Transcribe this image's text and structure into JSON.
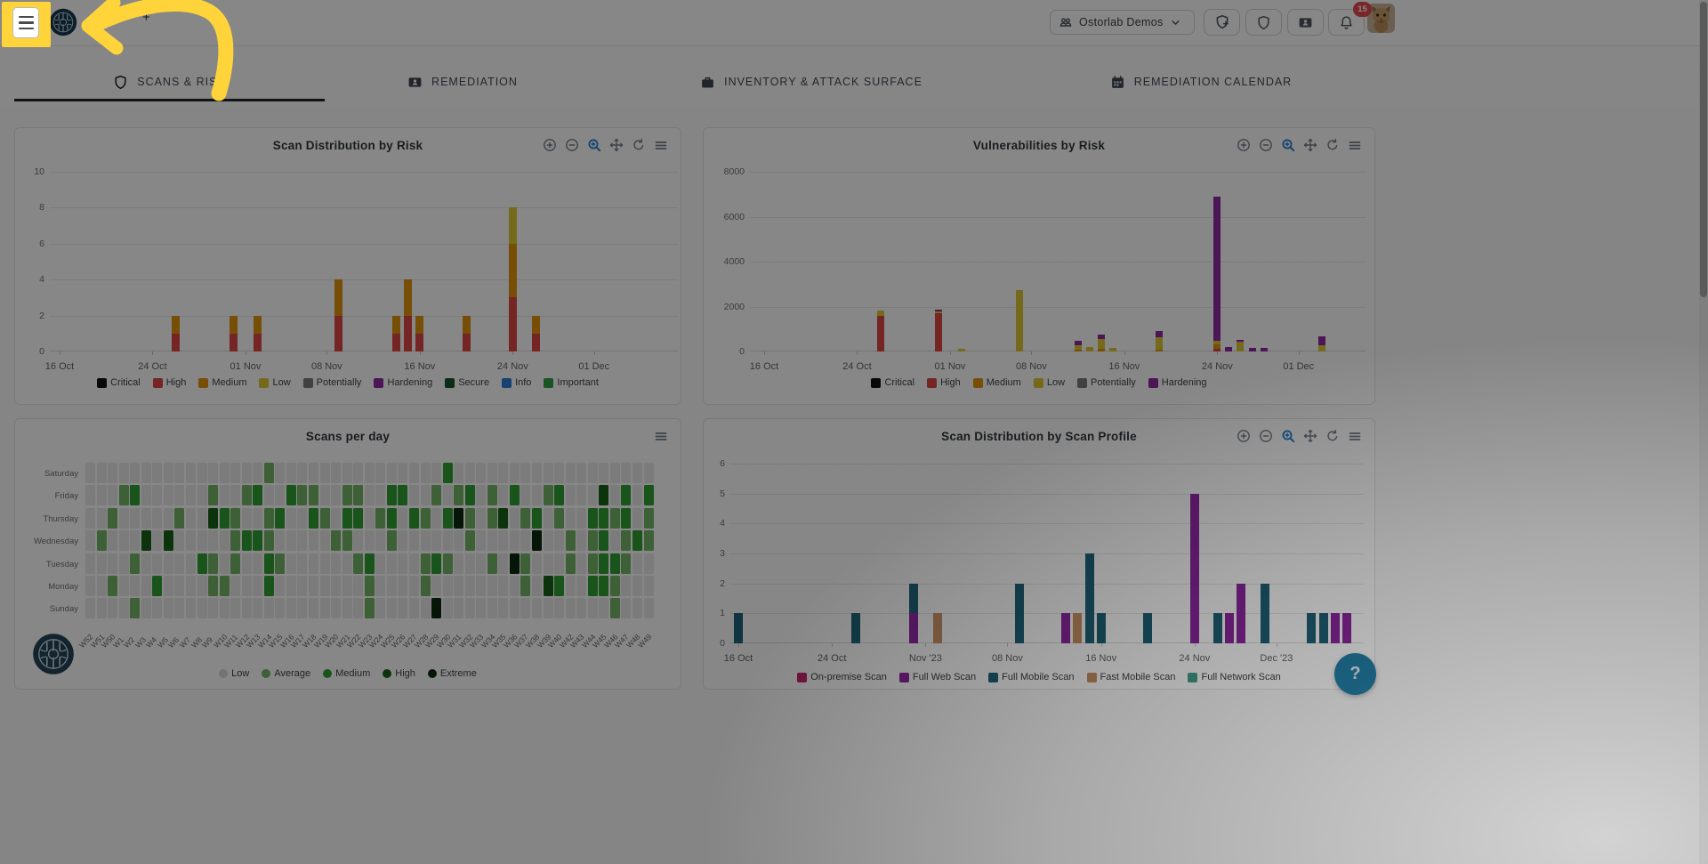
{
  "annotation": {
    "highlight_color": "#FFD43B"
  },
  "header": {
    "menu_button": {
      "icon": "hamburger-icon"
    },
    "logo": "ostorlab-logo",
    "org_switcher": {
      "icon": "organization-icon",
      "label": "Ostorlab Demos",
      "chevron": "chevron-down-icon"
    },
    "actions": [
      {
        "name": "new-scan-button",
        "icon": "shield-plus-icon"
      },
      {
        "name": "scans-button",
        "icon": "shield-icon"
      },
      {
        "name": "contacts-button",
        "icon": "id-card-icon"
      },
      {
        "name": "notifications-button",
        "icon": "bell-icon",
        "badge": "15"
      }
    ],
    "avatar": {
      "icon": "cat-avatar"
    }
  },
  "tabs": [
    {
      "label": "SCANS & RISK",
      "icon": "shield",
      "active": true
    },
    {
      "label": "REMEDIATION",
      "icon": "idcard",
      "active": false
    },
    {
      "label": "INVENTORY & ATTACK SURFACE",
      "icon": "briefcase",
      "active": false
    },
    {
      "label": "REMEDIATION CALENDAR",
      "icon": "calendar",
      "active": false
    }
  ],
  "palette": {
    "Critical": "#111111",
    "High": "#df4545",
    "Medium": "#e0940b",
    "Low": "#ddc735",
    "Potentially": "#7a7a7a",
    "Hardening": "#8f27a3",
    "Secure": "#14532d",
    "Info": "#2d7dd2",
    "Important": "#2e9e44",
    "On-premise Scan": "#c2266d",
    "Full Web Scan": "#8f27a3",
    "Full Mobile Scan": "#1f6379",
    "Fast Mobile Scan": "#c99266",
    "Full Network Scan": "#45a08c"
  },
  "heat_palette": [
    "#e9e9e9",
    "#74b566",
    "#2f9e33",
    "#176117",
    "#0a2a0e"
  ],
  "chart_data": [
    {
      "id": "scan-distribution-by-risk",
      "type": "bar",
      "title": "Scan Distribution by Risk",
      "ylim": [
        0,
        10
      ],
      "y_ticks": [
        0,
        2,
        4,
        6,
        8,
        10
      ],
      "x_ticks": [
        {
          "d": 0,
          "label": "16 Oct"
        },
        {
          "d": 8,
          "label": "24 Oct"
        },
        {
          "d": 16,
          "label": "01 Nov"
        },
        {
          "d": 23,
          "label": "08 Nov"
        },
        {
          "d": 31,
          "label": "16 Nov"
        },
        {
          "d": 39,
          "label": "24 Nov"
        },
        {
          "d": 46,
          "label": "01 Dec"
        }
      ],
      "legend": [
        "Critical",
        "High",
        "Medium",
        "Low",
        "Potentially",
        "Hardening",
        "Secure",
        "Info",
        "Important"
      ],
      "toolbar": [
        "zoom-in",
        "zoom-out",
        "selection-zoom",
        "pan",
        "reset",
        "menu"
      ],
      "bars": [
        {
          "d": 10,
          "date": "26 Oct",
          "segments": {
            "High": 1,
            "Medium": 1
          }
        },
        {
          "d": 15,
          "date": "31 Oct",
          "segments": {
            "High": 1,
            "Medium": 1
          }
        },
        {
          "d": 17,
          "date": "02 Nov",
          "segments": {
            "High": 1,
            "Medium": 1
          }
        },
        {
          "d": 24,
          "date": "09 Nov",
          "segments": {
            "High": 2,
            "Medium": 2
          }
        },
        {
          "d": 29,
          "date": "14 Nov",
          "segments": {
            "High": 1,
            "Medium": 1
          }
        },
        {
          "d": 30,
          "date": "15 Nov",
          "segments": {
            "High": 2,
            "Medium": 2
          }
        },
        {
          "d": 31,
          "date": "16 Nov",
          "segments": {
            "High": 1,
            "Medium": 1
          }
        },
        {
          "d": 35,
          "date": "20 Nov",
          "segments": {
            "High": 1,
            "Medium": 1
          }
        },
        {
          "d": 39,
          "date": "24 Nov",
          "segments": {
            "High": 3,
            "Medium": 3,
            "Low": 2
          }
        },
        {
          "d": 41,
          "date": "26 Nov",
          "segments": {
            "High": 1,
            "Medium": 1
          }
        }
      ]
    },
    {
      "id": "vulnerabilities-by-risk",
      "type": "bar",
      "title": "Vulnerabilities by Risk",
      "ylim": [
        0,
        8000
      ],
      "y_ticks": [
        0,
        2000,
        4000,
        6000,
        8000
      ],
      "x_ticks": [
        {
          "d": 0,
          "label": "16 Oct"
        },
        {
          "d": 8,
          "label": "24 Oct"
        },
        {
          "d": 16,
          "label": "01 Nov"
        },
        {
          "d": 23,
          "label": "08 Nov"
        },
        {
          "d": 31,
          "label": "16 Nov"
        },
        {
          "d": 39,
          "label": "24 Nov"
        },
        {
          "d": 46,
          "label": "01 Dec"
        }
      ],
      "legend": [
        "Critical",
        "High",
        "Medium",
        "Low",
        "Potentially",
        "Hardening"
      ],
      "toolbar": [
        "zoom-in",
        "zoom-out",
        "selection-zoom",
        "pan",
        "reset",
        "menu"
      ],
      "bars": [
        {
          "d": 10,
          "date": "26 Oct",
          "segments": {
            "High": 1600,
            "Low": 220
          }
        },
        {
          "d": 15,
          "date": "31 Oct",
          "segments": {
            "High": 1700,
            "Low": 90,
            "Hardening": 90
          }
        },
        {
          "d": 17,
          "date": "02 Nov",
          "segments": {
            "Low": 130
          }
        },
        {
          "d": 22,
          "date": "07 Nov",
          "segments": {
            "Low": 2750
          }
        },
        {
          "d": 27,
          "date": "12 Nov",
          "segments": {
            "Medium": 90,
            "Low": 200,
            "Hardening": 170
          }
        },
        {
          "d": 28,
          "date": "13 Nov",
          "segments": {
            "Low": 180
          }
        },
        {
          "d": 29,
          "date": "14 Nov",
          "segments": {
            "Medium": 130,
            "Low": 420,
            "Hardening": 210
          }
        },
        {
          "d": 30,
          "date": "15 Nov",
          "segments": {
            "Low": 170
          }
        },
        {
          "d": 34,
          "date": "19 Nov",
          "segments": {
            "Medium": 70,
            "Low": 550,
            "Hardening": 280
          }
        },
        {
          "d": 39,
          "date": "24 Nov",
          "segments": {
            "High": 130,
            "Medium": 200,
            "Low": 160,
            "Hardening": 6400
          }
        },
        {
          "d": 40,
          "date": "25 Nov",
          "segments": {
            "Hardening": 200
          }
        },
        {
          "d": 41,
          "date": "26 Nov",
          "segments": {
            "Low": 420,
            "Hardening": 70
          }
        },
        {
          "d": 42,
          "date": "27 Nov",
          "segments": {
            "Hardening": 160
          }
        },
        {
          "d": 43,
          "date": "28 Nov",
          "segments": {
            "Hardening": 150
          }
        },
        {
          "d": 48,
          "date": "03 Dec",
          "segments": {
            "Low": 290,
            "Hardening": 370
          }
        }
      ]
    },
    {
      "id": "scans-per-day",
      "type": "heatmap",
      "title": "Scans per day",
      "toolbar": [
        "menu"
      ],
      "row_labels": [
        "Saturday",
        "Friday",
        "Thursday",
        "Wednesday",
        "Tuesday",
        "Monday",
        "Sunday"
      ],
      "col_labels": [
        "W52",
        "W51",
        "W50",
        "W1",
        "W2",
        "W3",
        "W4",
        "W5",
        "W6",
        "W7",
        "W8",
        "W9",
        "W10",
        "W11",
        "W12",
        "W13",
        "W14",
        "W15",
        "W16",
        "W17",
        "W18",
        "W19",
        "W20",
        "W21",
        "W22",
        "W23",
        "W24",
        "W25",
        "W26",
        "W27",
        "W28",
        "W29",
        "W30",
        "W31",
        "W32",
        "W33",
        "W34",
        "W35",
        "W36",
        "W37",
        "W38",
        "W39",
        "W40",
        "W42",
        "W43",
        "W44",
        "W45",
        "W46",
        "W47",
        "W48",
        "W49"
      ],
      "rows": [
        "000000000000000010000000000000002000000000000000000",
        "000120000001001200211001100220010120102001200030202",
        "001000001003210012002102201202102410130120100221201",
        "010003030000012210000011000100000010000040010120121",
        "000010000021010021000000120000121000104100010122100",
        "001000200001100020000000010000100000000103200221000",
        "000010000000000000000000010000040000000000000001000"
      ],
      "legend": [
        "Low",
        "Average",
        "Medium",
        "High",
        "Extreme"
      ],
      "legend_colors": [
        "#d9d9d9",
        "#74b566",
        "#2f9e33",
        "#176117",
        "#0a2a0e"
      ]
    },
    {
      "id": "scan-distribution-by-scan-profile",
      "type": "bar",
      "title": "Scan Distribution by Scan Profile",
      "ylim": [
        0,
        6
      ],
      "y_ticks": [
        0,
        1,
        2,
        3,
        4,
        5,
        6
      ],
      "x_ticks": [
        {
          "d": 0,
          "label": "16 Oct"
        },
        {
          "d": 8,
          "label": "24 Oct"
        },
        {
          "d": 16,
          "label": "Nov '23"
        },
        {
          "d": 23,
          "label": "08 Nov"
        },
        {
          "d": 31,
          "label": "16 Nov"
        },
        {
          "d": 39,
          "label": "24 Nov"
        },
        {
          "d": 46,
          "label": "Dec '23"
        }
      ],
      "legend": [
        "On-premise Scan",
        "Full Web Scan",
        "Full Mobile Scan",
        "Fast Mobile Scan",
        "Full Network Scan"
      ],
      "toolbar": [
        "zoom-in",
        "zoom-out",
        "selection-zoom",
        "pan",
        "reset",
        "menu"
      ],
      "bars": [
        {
          "d": 0,
          "date": "16 Oct",
          "segments": {
            "Full Mobile Scan": 1
          }
        },
        {
          "d": 10,
          "date": "26 Oct",
          "segments": {
            "Full Mobile Scan": 1
          }
        },
        {
          "d": 15,
          "date": "31 Oct",
          "segments": {
            "Full Web Scan": 1,
            "Full Mobile Scan": 1
          }
        },
        {
          "d": 17,
          "date": "02 Nov",
          "segments": {
            "Fast Mobile Scan": 1
          }
        },
        {
          "d": 24,
          "date": "09 Nov",
          "segments": {
            "Full Mobile Scan": 2
          }
        },
        {
          "d": 28,
          "date": "13 Nov",
          "segments": {
            "Full Web Scan": 1
          }
        },
        {
          "d": 29,
          "date": "14 Nov",
          "segments": {
            "Fast Mobile Scan": 1
          }
        },
        {
          "d": 30,
          "date": "15 Nov",
          "segments": {
            "Full Mobile Scan": 3
          }
        },
        {
          "d": 31,
          "date": "16 Nov",
          "segments": {
            "Full Mobile Scan": 1
          }
        },
        {
          "d": 35,
          "date": "20 Nov",
          "segments": {
            "Full Mobile Scan": 1
          }
        },
        {
          "d": 39,
          "date": "24 Nov",
          "segments": {
            "Full Web Scan": 5
          }
        },
        {
          "d": 41,
          "date": "26 Nov",
          "segments": {
            "Full Mobile Scan": 1
          }
        },
        {
          "d": 42,
          "date": "27 Nov",
          "segments": {
            "Full Web Scan": 1
          }
        },
        {
          "d": 43,
          "date": "28 Nov",
          "segments": {
            "Full Web Scan": 2
          }
        },
        {
          "d": 45,
          "date": "30 Nov",
          "segments": {
            "Full Mobile Scan": 2
          }
        },
        {
          "d": 49,
          "date": "04 Dec",
          "segments": {
            "Full Mobile Scan": 1
          }
        },
        {
          "d": 50,
          "date": "05 Dec",
          "segments": {
            "Full Mobile Scan": 1
          }
        },
        {
          "d": 51,
          "date": "06 Dec",
          "segments": {
            "Full Web Scan": 1
          }
        },
        {
          "d": 52,
          "date": "07 Dec",
          "segments": {
            "Full Web Scan": 1
          }
        }
      ]
    }
  ],
  "help_button": {
    "label": "?"
  }
}
